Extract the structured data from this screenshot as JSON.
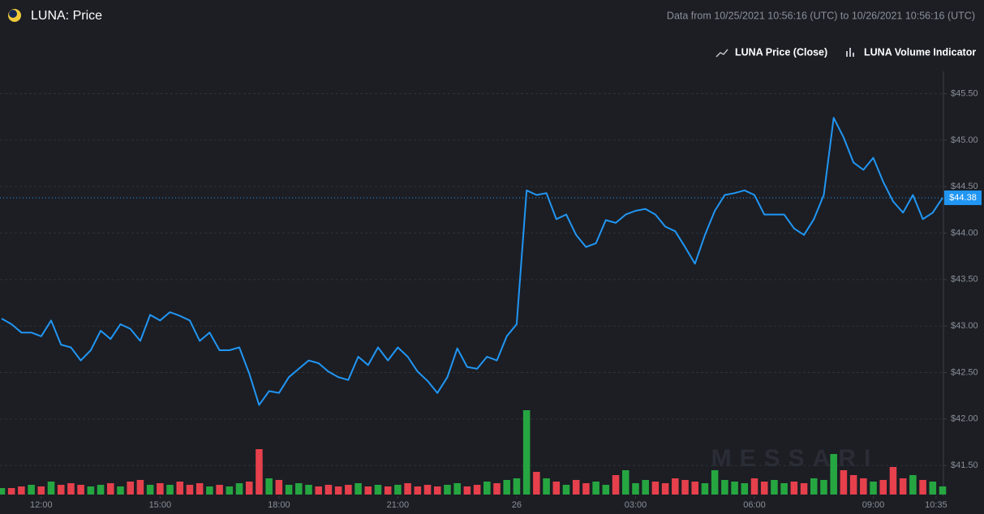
{
  "chart_data": {
    "type": "line",
    "title": "LUNA: Price",
    "subtitle": "Data from 10/25/2021 10:56:16 (UTC) to 10/26/2021 10:56:16 (UTC)",
    "watermark": "MESSARI",
    "x": [
      11,
      11.25,
      11.5,
      11.75,
      12,
      12.25,
      12.5,
      12.75,
      13,
      13.25,
      13.5,
      13.75,
      14,
      14.25,
      14.5,
      14.75,
      15,
      15.25,
      15.5,
      15.75,
      16,
      16.25,
      16.5,
      16.75,
      17,
      17.25,
      17.5,
      17.75,
      18,
      18.25,
      18.5,
      18.75,
      19,
      19.25,
      19.5,
      19.75,
      20,
      20.25,
      20.5,
      20.75,
      21,
      21.25,
      21.5,
      21.75,
      22,
      22.25,
      22.5,
      22.75,
      23,
      23.25,
      23.5,
      23.75,
      24,
      24.25,
      24.5,
      24.75,
      25,
      25.25,
      25.5,
      25.75,
      26,
      26.25,
      26.5,
      26.75,
      27,
      27.25,
      27.5,
      27.75,
      28,
      28.25,
      28.5,
      28.75,
      29,
      29.25,
      29.5,
      29.75,
      30,
      30.25,
      30.5,
      30.75,
      31,
      31.25,
      31.5,
      31.75,
      32,
      32.25,
      32.5,
      32.75,
      33,
      33.25,
      33.5,
      33.75,
      34,
      34.25,
      34.5,
      34.75
    ],
    "series": [
      {
        "name": "LUNA Price (Close)",
        "color": "#2196f3",
        "values": [
          43.08,
          43.02,
          42.93,
          42.93,
          42.89,
          43.06,
          42.8,
          42.77,
          42.63,
          42.74,
          42.95,
          42.86,
          43.02,
          42.97,
          42.84,
          43.12,
          43.06,
          43.15,
          43.11,
          43.06,
          42.84,
          42.93,
          42.74,
          42.74,
          42.77,
          42.49,
          42.15,
          42.3,
          42.28,
          42.45,
          42.54,
          42.63,
          42.6,
          42.51,
          42.45,
          42.42,
          42.67,
          42.58,
          42.77,
          42.63,
          42.77,
          42.67,
          42.51,
          42.41,
          42.28,
          42.45,
          42.76,
          42.56,
          42.54,
          42.67,
          42.63,
          42.89,
          43.02,
          44.46,
          44.41,
          44.43,
          44.15,
          44.2,
          43.98,
          43.85,
          43.89,
          44.14,
          44.11,
          44.2,
          44.24,
          44.26,
          44.2,
          44.07,
          44.02,
          43.85,
          43.67,
          43.98,
          44.24,
          44.41,
          44.43,
          44.46,
          44.41,
          44.2,
          44.2,
          44.2,
          44.05,
          43.98,
          44.15,
          44.41,
          45.24,
          45.03,
          44.76,
          44.68,
          44.81,
          44.55,
          44.34,
          44.22,
          44.41,
          44.15,
          44.22,
          44.38
        ]
      },
      {
        "name": "LUNA Volume Indicator",
        "color": "#26a641",
        "down_color": "#e5404c",
        "axis": "y2",
        "values": [
          4,
          4,
          5,
          6,
          5,
          8,
          6,
          7,
          6,
          5,
          6,
          7,
          5,
          8,
          9,
          6,
          7,
          6,
          8,
          6,
          7,
          5,
          6,
          5,
          7,
          8,
          28,
          10,
          9,
          6,
          7,
          6,
          5,
          6,
          5,
          6,
          7,
          5,
          6,
          5,
          6,
          7,
          5,
          6,
          5,
          6,
          7,
          5,
          6,
          8,
          7,
          9,
          10,
          52,
          14,
          10,
          8,
          6,
          9,
          7,
          8,
          6,
          12,
          15,
          7,
          9,
          8,
          7,
          10,
          9,
          8,
          7,
          15,
          9,
          8,
          7,
          10,
          8,
          9,
          7,
          8,
          7,
          10,
          9,
          25,
          15,
          12,
          10,
          8,
          9,
          17,
          10,
          12,
          9,
          8,
          5
        ]
      }
    ],
    "xlim": [
      10.96,
      34.77
    ],
    "xticks": [
      {
        "value": 12,
        "label": "12:00"
      },
      {
        "value": 15,
        "label": "15:00"
      },
      {
        "value": 18,
        "label": "18:00"
      },
      {
        "value": 21,
        "label": "21:00"
      },
      {
        "value": 24,
        "label": "26"
      },
      {
        "value": 27,
        "label": "03:00"
      },
      {
        "value": 30,
        "label": "06:00"
      },
      {
        "value": 33,
        "label": "09:00"
      },
      {
        "value": 34.583,
        "label": "10:35"
      }
    ],
    "ylim": [
      41.17,
      45.74
    ],
    "yticks": [
      {
        "value": 41.5,
        "label": "$41.50"
      },
      {
        "value": 42,
        "label": "$42.00"
      },
      {
        "value": 42.5,
        "label": "$42.50"
      },
      {
        "value": 43,
        "label": "$43.00"
      },
      {
        "value": 43.5,
        "label": "$43.50"
      },
      {
        "value": 44,
        "label": "$44.00"
      },
      {
        "value": 44.5,
        "label": "$44.50"
      },
      {
        "value": 45,
        "label": "$45.00"
      },
      {
        "value": 45.5,
        "label": "$45.50"
      }
    ],
    "y2lim": [
      0,
      100
    ],
    "last_price": {
      "value": 44.38,
      "label": "$44.38"
    },
    "grid": true
  }
}
